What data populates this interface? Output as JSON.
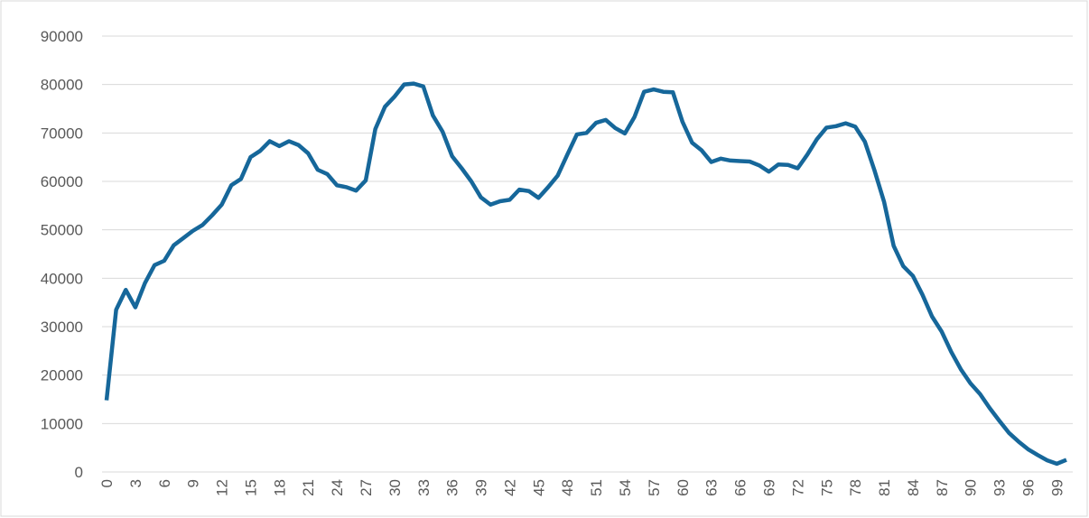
{
  "chart_data": {
    "type": "line",
    "x": [
      0,
      1,
      2,
      3,
      4,
      5,
      6,
      7,
      8,
      9,
      10,
      11,
      12,
      13,
      14,
      15,
      16,
      17,
      18,
      19,
      20,
      21,
      22,
      23,
      24,
      25,
      26,
      27,
      28,
      29,
      30,
      31,
      32,
      33,
      34,
      35,
      36,
      37,
      38,
      39,
      40,
      41,
      42,
      43,
      44,
      45,
      46,
      47,
      48,
      49,
      50,
      51,
      52,
      53,
      54,
      55,
      56,
      57,
      58,
      59,
      60,
      61,
      62,
      63,
      64,
      65,
      66,
      67,
      68,
      69,
      70,
      71,
      72,
      73,
      74,
      75,
      76,
      77,
      78,
      79,
      80,
      81,
      82,
      83,
      84,
      85,
      86,
      87,
      88,
      89,
      90,
      91,
      92,
      93,
      94,
      95,
      96,
      97,
      98,
      99,
      100
    ],
    "series": [
      {
        "color": "#16679a",
        "values": [
          14800,
          33500,
          37600,
          34000,
          39000,
          42700,
          43600,
          46800,
          48300,
          49800,
          51000,
          53000,
          55200,
          59200,
          60500,
          65000,
          66300,
          68300,
          67300,
          68300,
          67500,
          65800,
          62400,
          61500,
          59200,
          58800,
          58100,
          60200,
          70800,
          75400,
          77500,
          80000,
          80200,
          79600,
          73600,
          70300,
          65200,
          62700,
          60000,
          56700,
          55200,
          55900,
          56200,
          58300,
          58000,
          56600,
          58800,
          61200,
          65500,
          69700,
          70000,
          72100,
          72700,
          71000,
          69900,
          73300,
          78500,
          79000,
          78500,
          78400,
          72300,
          68000,
          66400,
          64000,
          64700,
          64300,
          64200,
          64100,
          63300,
          62000,
          63500,
          63400,
          62700,
          65500,
          68700,
          71100,
          71400,
          72000,
          71300,
          68200,
          62300,
          55800,
          46700,
          42500,
          40500,
          36600,
          32100,
          29000,
          24800,
          21200,
          18300,
          16100,
          13200,
          10600,
          8100,
          6300,
          4700,
          3500,
          2400,
          1700,
          2500
        ]
      }
    ],
    "xlim": [
      0,
      100
    ],
    "xticks": [
      0,
      3,
      6,
      9,
      12,
      15,
      18,
      21,
      24,
      27,
      30,
      33,
      36,
      39,
      42,
      45,
      48,
      51,
      54,
      57,
      60,
      63,
      66,
      69,
      72,
      75,
      78,
      81,
      84,
      87,
      90,
      93,
      96,
      99
    ],
    "ylim": [
      0,
      90000
    ],
    "yticks": [
      0,
      10000,
      20000,
      30000,
      40000,
      50000,
      60000,
      70000,
      80000,
      90000
    ],
    "grid": true
  }
}
